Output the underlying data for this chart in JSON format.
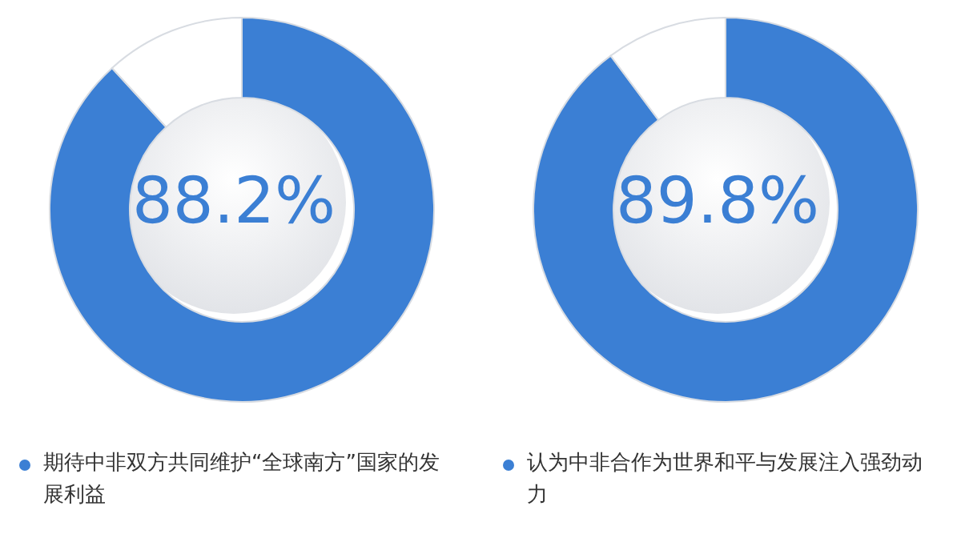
{
  "chart_data": [
    {
      "type": "donut",
      "categories": [
        "期待中非双方共同维护“全球南方”国家的发展利益",
        null
      ],
      "values": [
        88.2,
        11.8
      ],
      "colors": [
        "#3b7fd4",
        "#ffffff"
      ],
      "value_labels": [
        "88.2%",
        null
      ],
      "legend": "bottom"
    },
    {
      "type": "donut",
      "categories": [
        "认为中非合作为世界和平与发展注入强劲动力",
        null
      ],
      "values": [
        89.8,
        10.2
      ],
      "colors": [
        "#3b7fd4",
        "#ffffff"
      ],
      "value_labels": [
        "89.8%",
        null
      ],
      "legend": "bottom"
    }
  ]
}
